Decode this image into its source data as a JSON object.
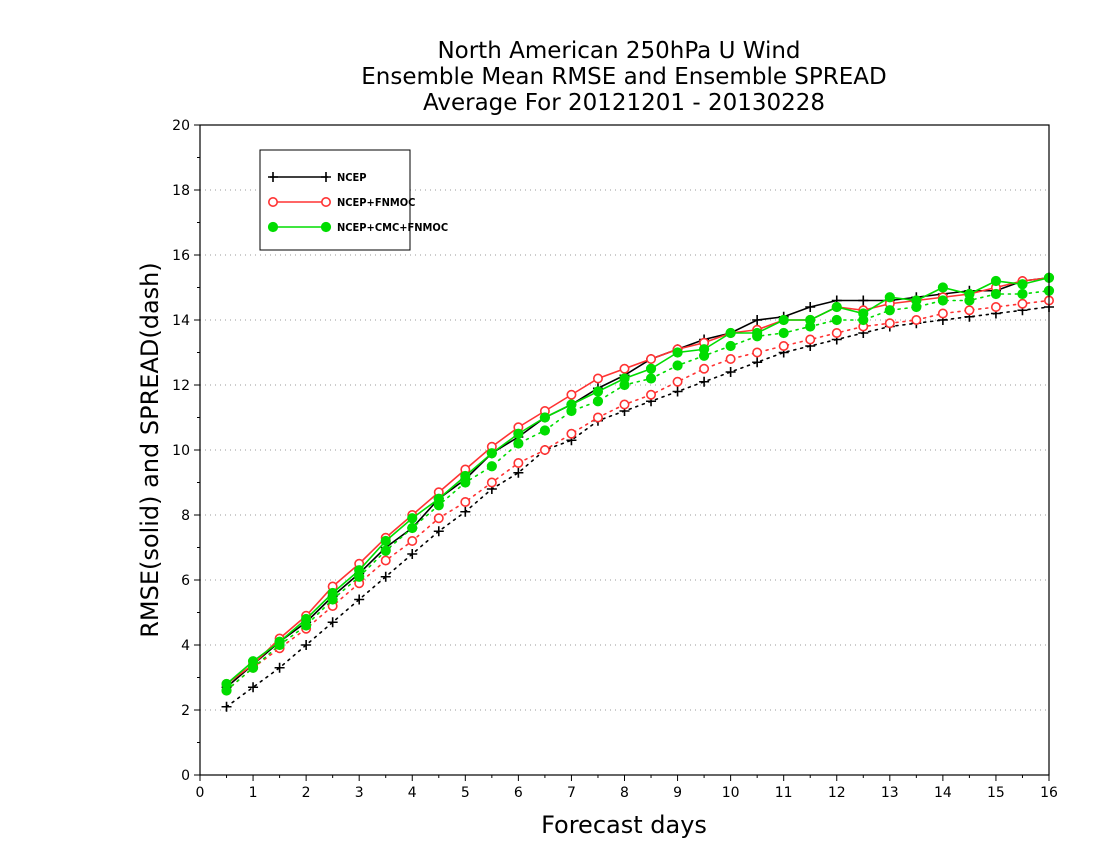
{
  "chart_data": {
    "type": "line",
    "title": [
      "North American 250hPa U Wind",
      "Ensemble Mean RMSE and Ensemble SPREAD",
      "Average For 20121201 - 20130228"
    ],
    "xlabel": "Forecast days",
    "ylabel": "RMSE(solid) and SPREAD(dash)",
    "xlim": [
      0,
      16
    ],
    "ylim": [
      0,
      20
    ],
    "x_ticks": [
      0,
      1,
      2,
      3,
      4,
      5,
      6,
      7,
      8,
      9,
      10,
      11,
      12,
      13,
      14,
      15,
      16
    ],
    "y_ticks": [
      0,
      2,
      4,
      6,
      8,
      10,
      12,
      14,
      16,
      18,
      20
    ],
    "grid": true,
    "legend_position": "top-left",
    "x": [
      0.5,
      1,
      1.5,
      2,
      2.5,
      3,
      3.5,
      4,
      4.5,
      5,
      5.5,
      6,
      6.5,
      7,
      7.5,
      8,
      8.5,
      9,
      9.5,
      10,
      10.5,
      11,
      11.5,
      12,
      12.5,
      13,
      13.5,
      14,
      14.5,
      15,
      15.5,
      16
    ],
    "series": [
      {
        "name": "NCEP",
        "color": "#000000",
        "marker": "plus",
        "rmse": [
          2.7,
          3.4,
          4.1,
          4.7,
          5.5,
          6.2,
          7.0,
          7.6,
          8.5,
          9.1,
          9.9,
          10.4,
          11.0,
          11.4,
          11.9,
          12.3,
          12.8,
          13.1,
          13.4,
          13.6,
          14.0,
          14.1,
          14.4,
          14.6,
          14.6,
          14.6,
          14.7,
          14.8,
          14.9,
          14.9,
          15.2,
          15.3
        ],
        "spread": [
          2.1,
          2.7,
          3.3,
          4.0,
          4.7,
          5.4,
          6.1,
          6.8,
          7.5,
          8.1,
          8.8,
          9.3,
          10.0,
          10.3,
          10.9,
          11.2,
          11.5,
          11.8,
          12.1,
          12.4,
          12.7,
          13.0,
          13.2,
          13.4,
          13.6,
          13.8,
          13.9,
          14.0,
          14.1,
          14.2,
          14.3,
          14.4
        ]
      },
      {
        "name": "NCEP+FNMOC",
        "color": "#ff3333",
        "marker": "circle-open",
        "rmse": [
          2.8,
          3.4,
          4.2,
          4.9,
          5.8,
          6.5,
          7.3,
          8.0,
          8.7,
          9.4,
          10.1,
          10.7,
          11.2,
          11.7,
          12.2,
          12.5,
          12.8,
          13.1,
          13.3,
          13.6,
          13.7,
          14.0,
          14.0,
          14.4,
          14.3,
          14.5,
          14.6,
          14.7,
          14.8,
          15.0,
          15.2,
          15.3
        ],
        "spread": [
          2.6,
          3.3,
          3.9,
          4.5,
          5.2,
          5.9,
          6.6,
          7.2,
          7.9,
          8.4,
          9.0,
          9.6,
          10.0,
          10.5,
          11.0,
          11.4,
          11.7,
          12.1,
          12.5,
          12.8,
          13.0,
          13.2,
          13.4,
          13.6,
          13.8,
          13.9,
          14.0,
          14.2,
          14.3,
          14.4,
          14.5,
          14.6
        ]
      },
      {
        "name": "NCEP+CMC+FNMOC",
        "color": "#00dd00",
        "marker": "circle-filled",
        "rmse": [
          2.8,
          3.5,
          4.1,
          4.8,
          5.6,
          6.3,
          7.2,
          7.9,
          8.5,
          9.2,
          9.9,
          10.5,
          11.0,
          11.4,
          11.8,
          12.2,
          12.5,
          13.0,
          13.1,
          13.6,
          13.6,
          14.0,
          14.0,
          14.4,
          14.2,
          14.7,
          14.6,
          15.0,
          14.8,
          15.2,
          15.1,
          15.3
        ],
        "spread": [
          2.6,
          3.3,
          4.0,
          4.6,
          5.4,
          6.1,
          6.9,
          7.6,
          8.3,
          9.0,
          9.5,
          10.2,
          10.6,
          11.2,
          11.5,
          12.0,
          12.2,
          12.6,
          12.9,
          13.2,
          13.5,
          13.6,
          13.8,
          14.0,
          14.0,
          14.3,
          14.4,
          14.6,
          14.6,
          14.8,
          14.8,
          14.9
        ]
      }
    ]
  }
}
